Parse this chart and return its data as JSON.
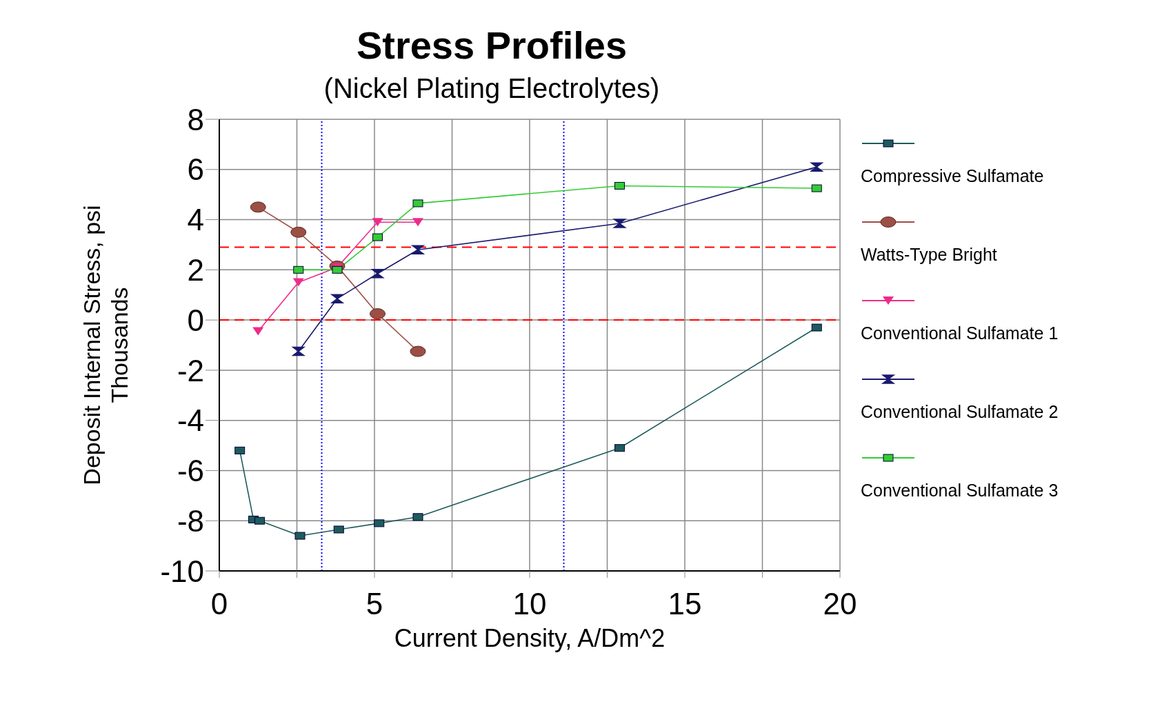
{
  "chart_data": {
    "type": "line",
    "title": "Stress Profiles",
    "subtitle": "(Nickel Plating Electrolytes)",
    "xlabel": "Current Density, A/Dm^2",
    "ylabel": "Deposit Internal Stress, psi\nThousands",
    "xlim": [
      0,
      20
    ],
    "xticks": [
      0,
      {
        "value": 2.5,
        "label": null
      },
      5,
      {
        "value": 7.5,
        "label": null
      },
      10,
      {
        "value": 12.5,
        "label": null
      },
      15,
      {
        "value": 17.5,
        "label": null
      },
      20
    ],
    "ylim": [
      -10,
      8
    ],
    "yticks": [
      -10,
      -8,
      -6,
      -4,
      -2,
      0,
      2,
      4,
      6,
      8
    ],
    "grid": true,
    "legend": "right",
    "series": [
      {
        "name": "Compressive Sulfamate",
        "color": "#1e5b5b",
        "marker": "square",
        "x": [
          0.66,
          1.1,
          1.3,
          2.6,
          3.85,
          5.15,
          6.4,
          12.9,
          19.25
        ],
        "values": [
          -5.2,
          -7.95,
          -8.0,
          -8.6,
          -8.35,
          -8.1,
          -7.85,
          -5.1,
          -0.3
        ]
      },
      {
        "name": "Watts-Type Bright",
        "color": "#9b4f45",
        "marker": "circle",
        "x": [
          1.25,
          2.55,
          3.8,
          5.1,
          6.4
        ],
        "values": [
          4.5,
          3.5,
          2.15,
          0.25,
          -1.25
        ]
      },
      {
        "name": "Conventional Sulfamate 1",
        "color": "#ee2b8b",
        "marker": "triangle",
        "x": [
          1.25,
          2.55,
          3.8,
          5.1,
          6.4
        ],
        "values": [
          -0.45,
          1.5,
          2.1,
          3.9,
          3.9
        ]
      },
      {
        "name": "Conventional Sulfamate 2",
        "color": "#1a1a6e",
        "marker": "diamond",
        "x": [
          2.55,
          3.8,
          5.1,
          6.4,
          12.9,
          19.25
        ],
        "values": [
          -1.25,
          0.85,
          1.85,
          2.8,
          3.85,
          6.1
        ]
      },
      {
        "name": "Conventional Sulfamate 3",
        "color": "#33cc33",
        "marker": "square",
        "x": [
          2.55,
          3.8,
          5.1,
          6.4,
          12.9,
          19.25
        ],
        "values": [
          2.0,
          2.0,
          3.3,
          4.65,
          5.35,
          5.25
        ]
      }
    ],
    "ref_lines": [
      {
        "axis": "y",
        "value": 2.9,
        "color": "#ff0000",
        "line_style": "dashed"
      },
      {
        "axis": "y",
        "value": 0,
        "color": "#ff0000",
        "line_style": "dashed"
      },
      {
        "axis": "x",
        "value": 3.3,
        "color": "#0000ff",
        "line_style": "dotted"
      },
      {
        "axis": "x",
        "value": 11.1,
        "color": "#0000ff",
        "line_style": "dotted"
      }
    ]
  }
}
